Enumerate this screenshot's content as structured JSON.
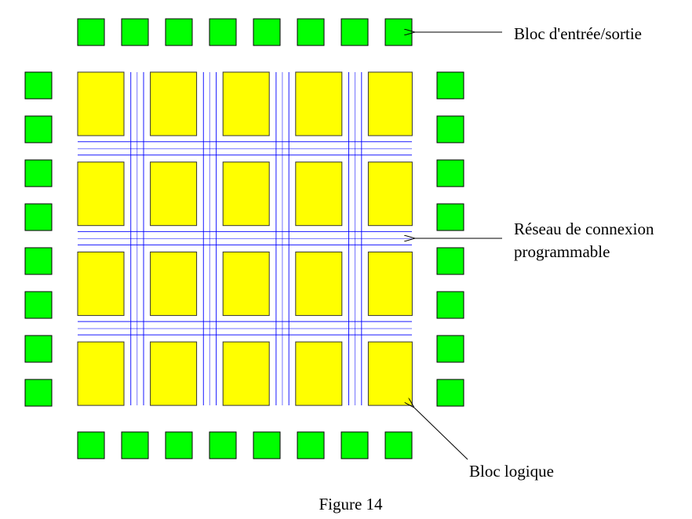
{
  "labels": {
    "io_block": "Bloc d'entrée/sortie",
    "network_line1": "Réseau de connexion",
    "network_line2": "programmable",
    "logic_block": "Bloc logique"
  },
  "caption": "Figure 14",
  "colors": {
    "io_block": "#00ff00",
    "logic_block": "#ffff00",
    "interconnect": "#0000ff"
  },
  "grid": {
    "logic_rows": 4,
    "logic_cols": 5,
    "io_per_side": 8,
    "wires_per_channel": 3
  }
}
